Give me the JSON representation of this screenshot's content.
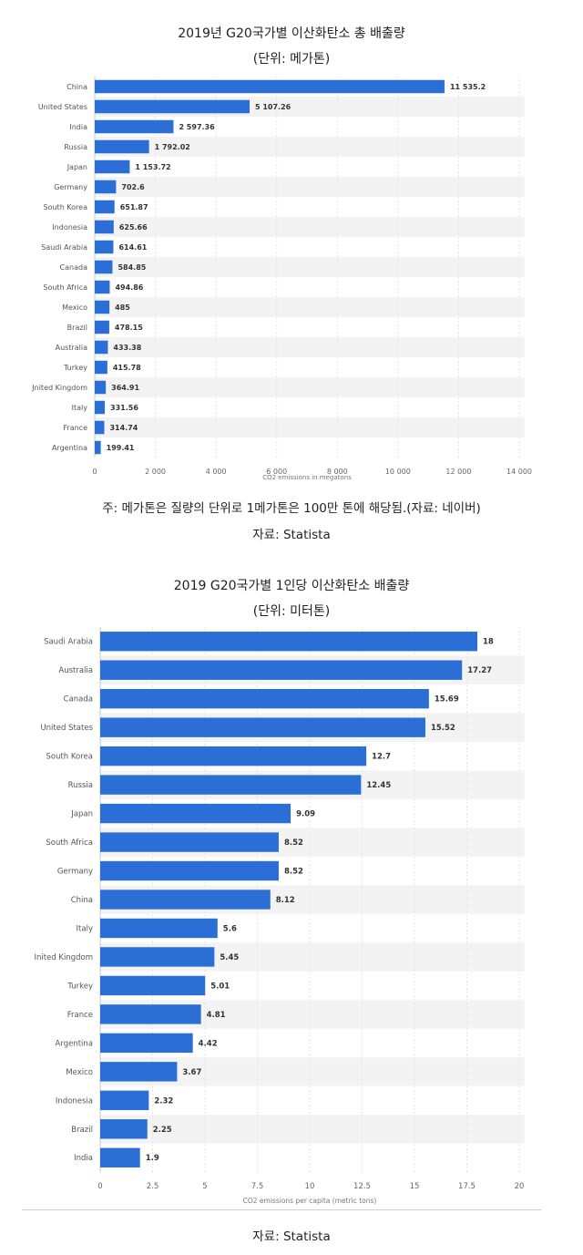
{
  "charts": [
    {
      "title": "2019년 G20국가별 이산화탄소 총 배출량",
      "unit": "(단위: 메가톤)",
      "note": "주: 메가톤은 질량의 단위로 1메가톤은 100만 톤에 해당됨.(자료: 네이버)",
      "source": "자료: Statista"
    },
    {
      "title": "2019 G20국가별 1인당 이산화탄소 배출량",
      "unit": "(단위: 미터톤)",
      "source": "자료: Statista"
    }
  ],
  "chart_data": [
    {
      "type": "bar",
      "orientation": "horizontal",
      "title": "2019년 G20국가별 이산화탄소 총 배출량",
      "xlabel": "CO2 emissions in megatons",
      "xlim": [
        0,
        14000
      ],
      "xticks": [
        0,
        2000,
        4000,
        6000,
        8000,
        10000,
        12000,
        14000
      ],
      "xtick_labels": [
        "0",
        "2 000",
        "4 000",
        "6 000",
        "8 000",
        "10 000",
        "12 000",
        "14 000"
      ],
      "categories": [
        "China",
        "United States",
        "India",
        "Russia",
        "Japan",
        "Germany",
        "South Korea",
        "Indonesia",
        "Saudi Arabia",
        "Canada",
        "South Africa",
        "Mexico",
        "Brazil",
        "Australia",
        "Turkey",
        "Jnited Kingdom",
        "Italy",
        "France",
        "Argentina"
      ],
      "values": [
        11535.2,
        5107.26,
        2597.36,
        1792.02,
        1153.72,
        702.6,
        651.87,
        625.66,
        614.61,
        584.85,
        494.86,
        485,
        478.15,
        433.38,
        415.78,
        364.91,
        331.56,
        314.74,
        199.41
      ],
      "value_labels": [
        "11 535.2",
        "5 107.26",
        "2 597.36",
        "1 792.02",
        "1 153.72",
        "702.6",
        "651.87",
        "625.66",
        "614.61",
        "584.85",
        "494.86",
        "485",
        "478.15",
        "433.38",
        "415.78",
        "364.91",
        "331.56",
        "314.74",
        "199.41"
      ],
      "bar_color": "#2b6fd6",
      "stripe_color": "#f3f3f3",
      "grid": true
    },
    {
      "type": "bar",
      "orientation": "horizontal",
      "title": "2019 G20국가별 1인당 이산화탄소 배출량",
      "xlabel": "CO2 emissions per capita (metric tons)",
      "xlim": [
        0,
        20
      ],
      "xticks": [
        0,
        2.5,
        5,
        7.5,
        10,
        12.5,
        15,
        17.5,
        20
      ],
      "xtick_labels": [
        "0",
        "2.5",
        "5",
        "7.5",
        "10",
        "12.5",
        "15",
        "17.5",
        "20"
      ],
      "categories": [
        "Saudi Arabia",
        "Australia",
        "Canada",
        "United States",
        "South Korea",
        "Russia",
        "Japan",
        "South Africa",
        "Germany",
        "China",
        "Italy",
        "Inited Kingdom",
        "Turkey",
        "France",
        "Argentina",
        "Mexico",
        "Indonesia",
        "Brazil",
        "India"
      ],
      "values": [
        18,
        17.27,
        15.69,
        15.52,
        12.7,
        12.45,
        9.09,
        8.52,
        8.52,
        8.12,
        5.6,
        5.45,
        5.01,
        4.81,
        4.42,
        3.67,
        2.32,
        2.25,
        1.9
      ],
      "value_labels": [
        "18",
        "17.27",
        "15.69",
        "15.52",
        "12.7",
        "12.45",
        "9.09",
        "8.52",
        "8.52",
        "8.12",
        "5.6",
        "5.45",
        "5.01",
        "4.81",
        "4.42",
        "3.67",
        "2.32",
        "2.25",
        "1.9"
      ],
      "bar_color": "#2b6fd6",
      "stripe_color": "#f3f3f3",
      "grid": true
    }
  ]
}
